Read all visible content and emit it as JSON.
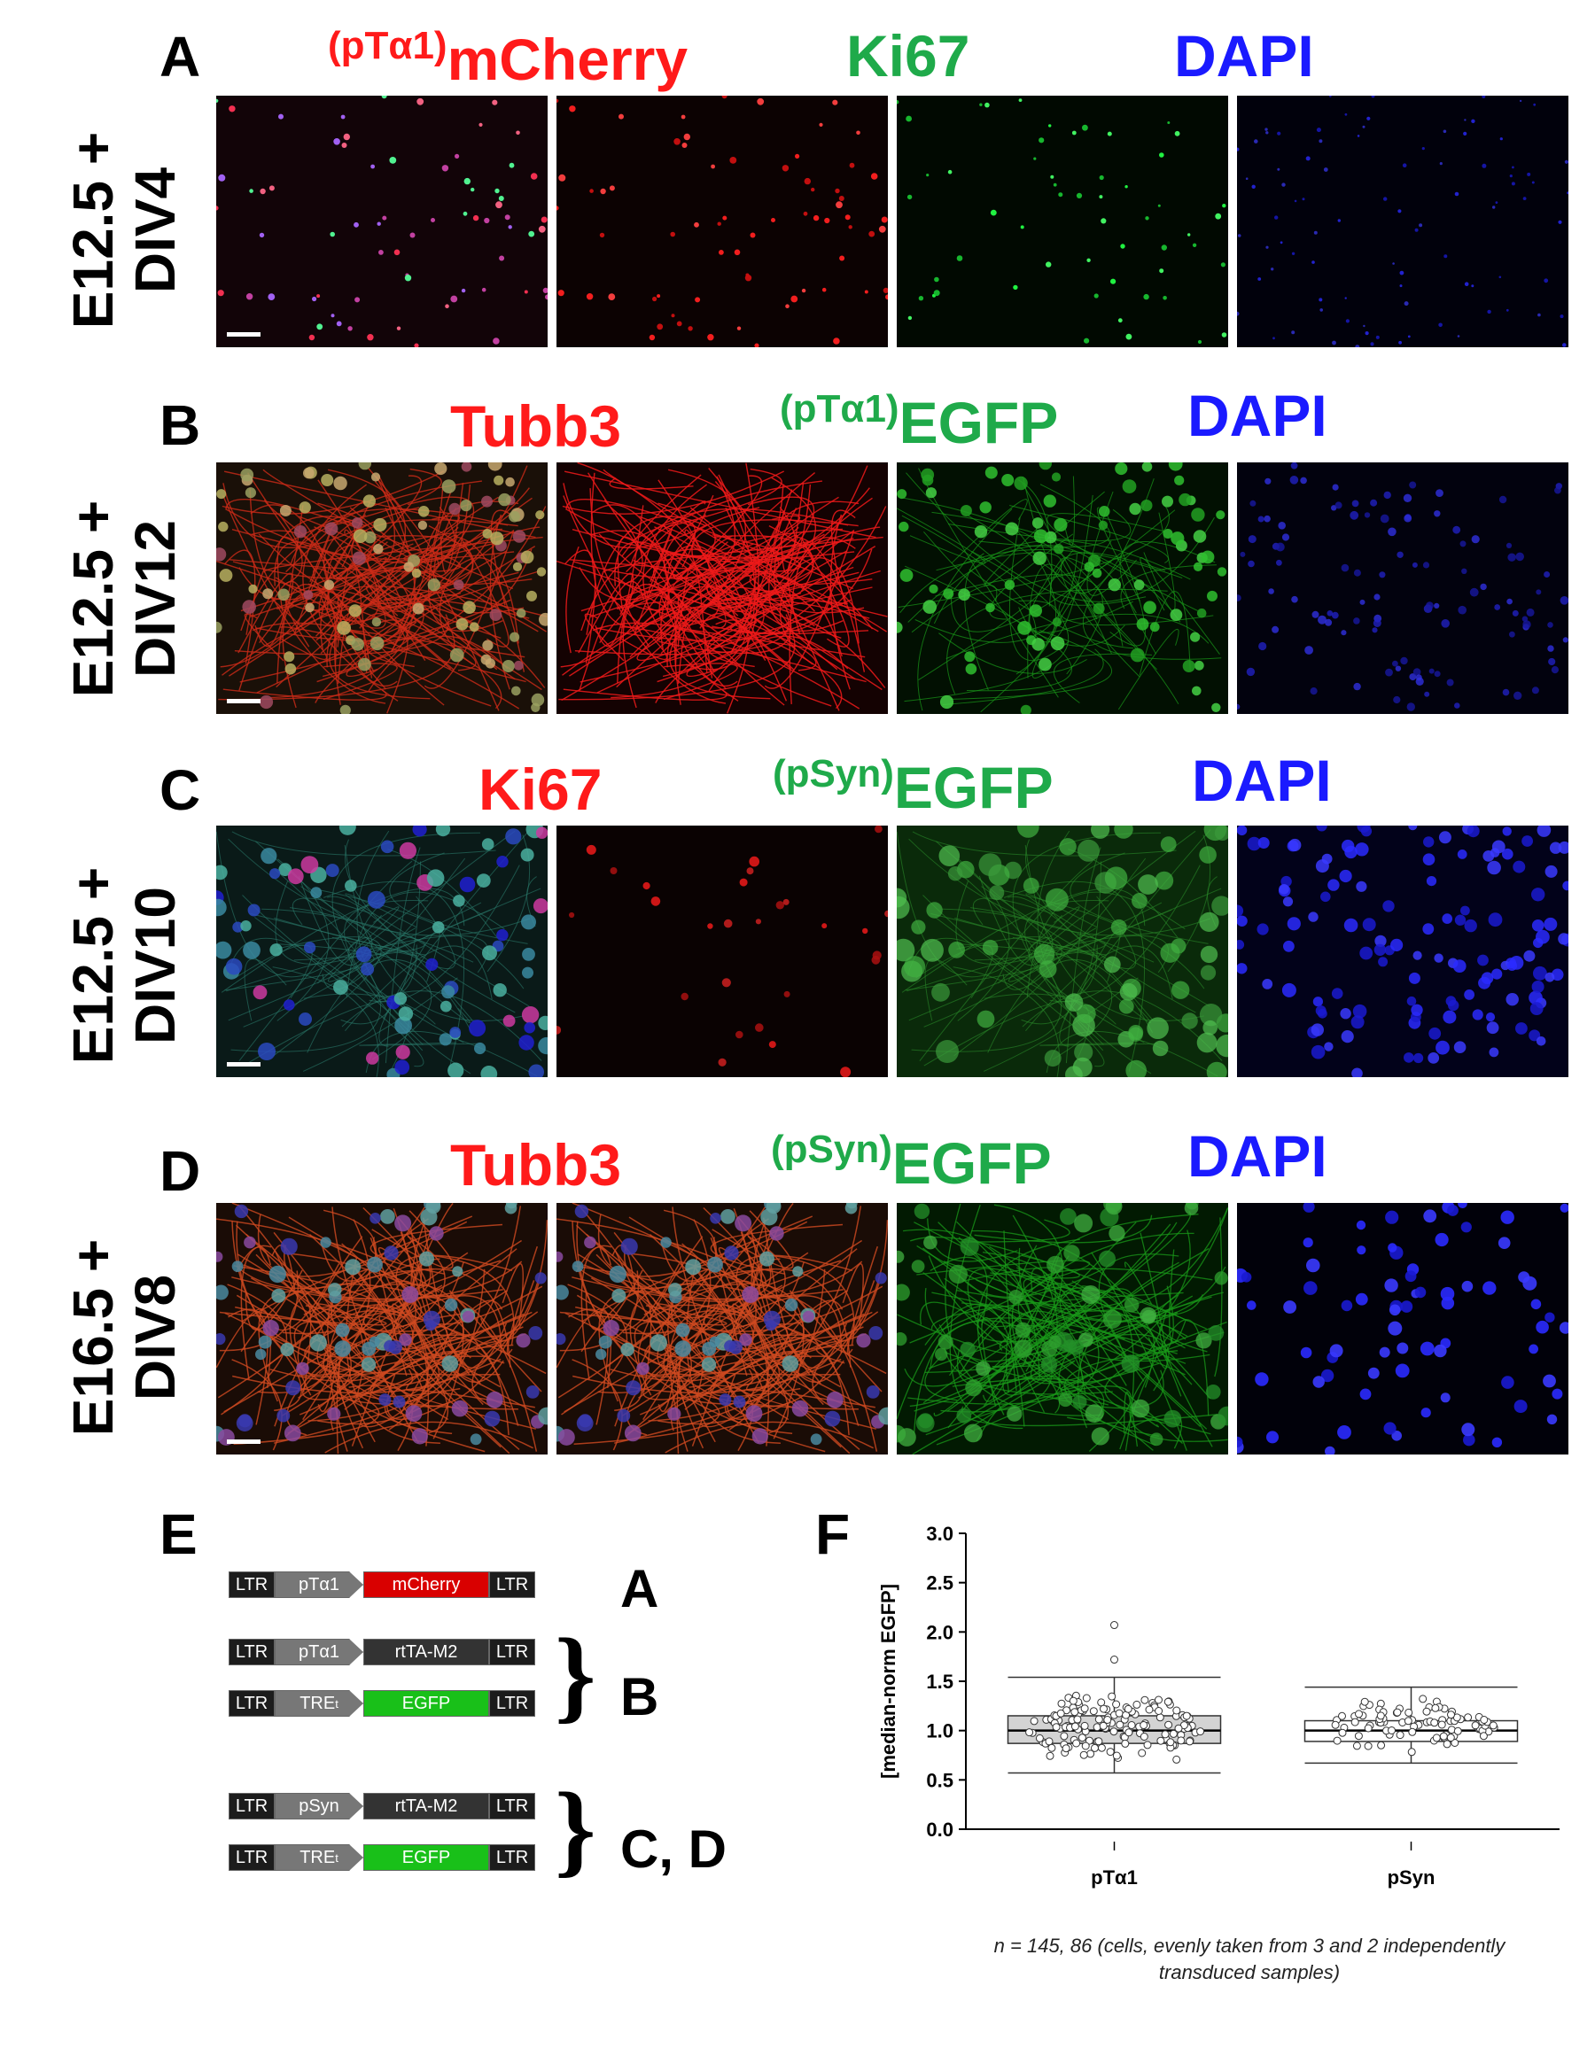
{
  "panels": {
    "A": {
      "letter": "A",
      "label_line1": "E12.5 +",
      "label_line2": "DIV4"
    },
    "B": {
      "letter": "B",
      "label_line1": "E12.5 +",
      "label_line2": "DIV12"
    },
    "C": {
      "letter": "C",
      "label_line1": "E12.5 +",
      "label_line2": "DIV10"
    },
    "D": {
      "letter": "D",
      "label_line1": "E16.5 +",
      "label_line2": "DIV8"
    },
    "E": {
      "letter": "E"
    },
    "F": {
      "letter": "F"
    }
  },
  "headers": {
    "A": {
      "h1_sup": "(pTα1)",
      "h1": "mCherry",
      "h2": "Ki67",
      "h3": "DAPI"
    },
    "B": {
      "h1": "Tubb3",
      "h2_sup": "(pTα1)",
      "h2": "EGFP",
      "h3": "DAPI"
    },
    "C": {
      "h1": "Ki67",
      "h2_sup": "(pSyn)",
      "h2": "EGFP",
      "h3": "DAPI"
    },
    "D": {
      "h1": "Tubb3",
      "h2_sup": "(pSyn)",
      "h2": "EGFP",
      "h3": "DAPI"
    }
  },
  "constructs": {
    "ltr": "LTR",
    "row1": {
      "promoter": "pTα1",
      "gene": "mCherry",
      "gene_color": "#d90000"
    },
    "row2": {
      "promoter": "pTα1",
      "gene": "rtTA-M2",
      "gene_color": "#333333"
    },
    "row3": {
      "promoter": "TRE",
      "promoter_sub": "t",
      "gene": "EGFP",
      "gene_color": "#19c019"
    },
    "row4": {
      "promoter": "pSyn",
      "gene": "rtTA-M2",
      "gene_color": "#333333"
    },
    "row5": {
      "promoter": "TRE",
      "promoter_sub": "t",
      "gene": "EGFP",
      "gene_color": "#19c019"
    },
    "label_a": "A",
    "label_b": "B",
    "label_cd": "C, D"
  },
  "chart_data": {
    "type": "box",
    "ylabel": "[median-norm EGFP]",
    "ylim": [
      0.0,
      3.0
    ],
    "yticks": [
      "0.0",
      "0.5",
      "1.0",
      "1.5",
      "2.0",
      "2.5",
      "3.0"
    ],
    "categories": [
      "pTα1",
      "pSyn"
    ],
    "boxes": [
      {
        "name": "pTα1",
        "whisker_low": 0.57,
        "q1": 0.87,
        "median": 1.0,
        "q3": 1.15,
        "whisker_high": 1.54,
        "outliers": [
          1.72,
          2.07
        ],
        "fill": "#d3d3d3"
      },
      {
        "name": "pSyn",
        "whisker_low": 0.67,
        "q1": 0.89,
        "median": 1.0,
        "q3": 1.1,
        "whisker_high": 1.44,
        "outliers": [],
        "fill": "#ffffff"
      }
    ],
    "note_line1": "n = 145, 86 (cells, evenly taken from 3 and 2 independently",
    "note_line2": "transduced samples)"
  }
}
